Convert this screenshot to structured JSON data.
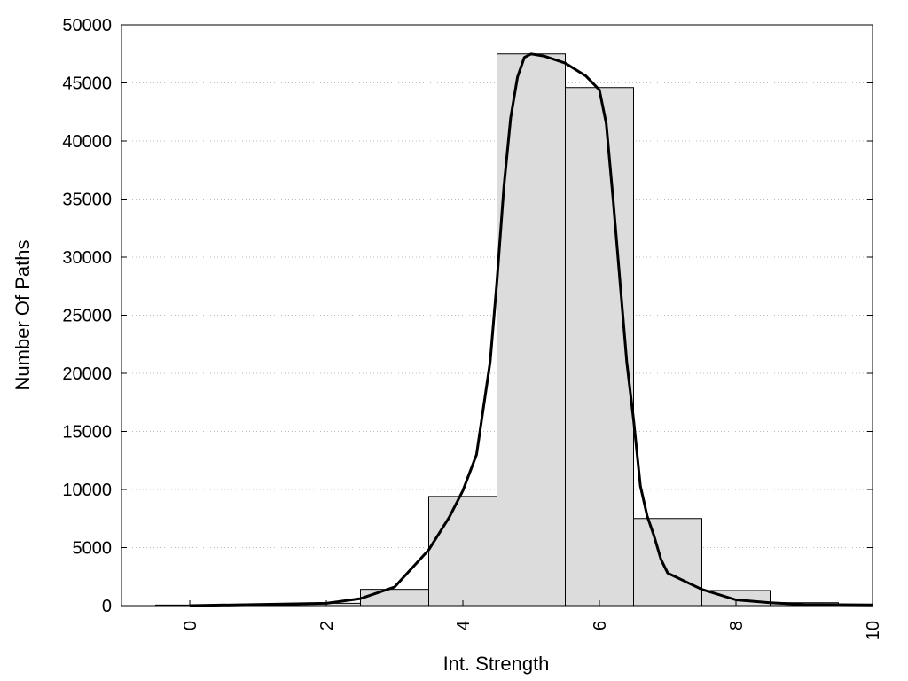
{
  "chart_data": {
    "type": "bar",
    "title": "",
    "xlabel": "Int. Strength",
    "ylabel": "Number Of Paths",
    "xlim": [
      -1,
      10
    ],
    "ylim": [
      0,
      50000
    ],
    "x_ticks": [
      0,
      2,
      4,
      6,
      8,
      10
    ],
    "y_ticks": [
      0,
      5000,
      10000,
      15000,
      20000,
      25000,
      30000,
      35000,
      40000,
      45000,
      50000
    ],
    "grid": {
      "horizontal": true,
      "style": "dotted"
    },
    "bars": {
      "x": [
        0,
        1,
        2,
        3,
        4,
        5,
        6,
        7,
        8,
        9,
        10
      ],
      "values": [
        50,
        80,
        200,
        1400,
        9400,
        47500,
        44600,
        7500,
        1300,
        250,
        100
      ],
      "width": 1,
      "color": "#dcdcdc"
    },
    "curve": {
      "x": [
        0,
        1,
        2,
        2.5,
        3,
        3.5,
        3.8,
        4,
        4.2,
        4.4,
        4.5,
        4.6,
        4.7,
        4.8,
        4.9,
        5,
        5.2,
        5.5,
        5.8,
        6,
        6.1,
        6.2,
        6.3,
        6.4,
        6.5,
        6.6,
        6.7,
        6.8,
        6.9,
        7,
        7.5,
        8,
        8.5,
        9,
        10
      ],
      "y": [
        0,
        100,
        200,
        600,
        1600,
        4800,
        7600,
        9900,
        13000,
        21000,
        28000,
        36000,
        42000,
        45500,
        47200,
        47500,
        47300,
        46700,
        45600,
        44400,
        41500,
        35000,
        28000,
        21000,
        16000,
        10300,
        7700,
        6000,
        4000,
        2800,
        1400,
        500,
        250,
        100,
        50
      ],
      "color": "#000000"
    }
  }
}
